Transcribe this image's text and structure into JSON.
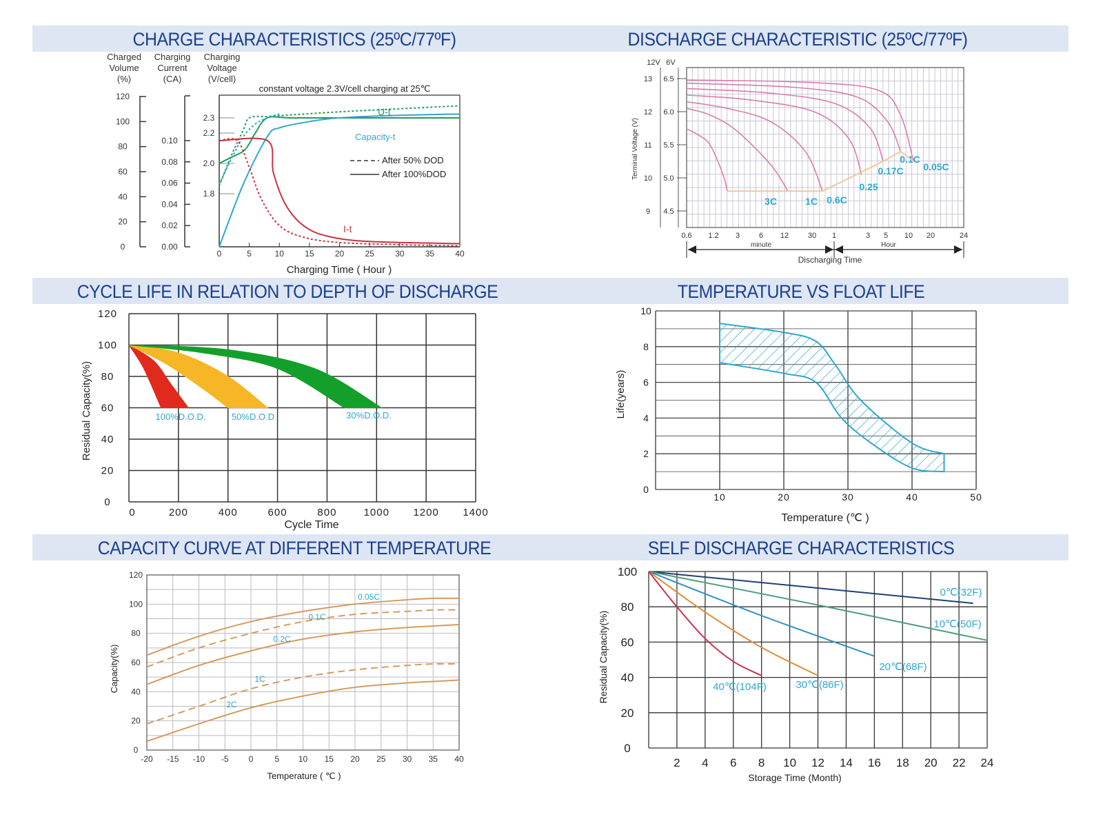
{
  "titles": {
    "charge": "CHARGE CHARACTERISTICS (25ºC/77ºF)",
    "discharge": "DISCHARGE CHARACTERISTIC (25ºC/77ºF)",
    "cycle": "CYCLE LIFE IN RELATION TO DEPTH OF DISCHARGE",
    "float": "TEMPERATURE VS FLOAT LIFE",
    "capacity": "CAPACITY CURVE AT DIFFERENT TEMPERATURE",
    "self": "SELF DISCHARGE CHARACTERISTICS"
  },
  "colors": {
    "band": "#dde6f2",
    "title": "#1b3f8f",
    "cyan": "#2ea7cf",
    "green": "#1f9c5c",
    "red": "#c8323e",
    "pink": "#d77db0",
    "orange": "#d69a5c"
  },
  "chart_data": [
    {
      "id": "charge",
      "type": "line",
      "title": "CHARGE CHARACTERISTICS (25ºC/77ºF)",
      "axis_heads": {
        "volume": [
          "Charged",
          "Volume",
          "(%)"
        ],
        "current": [
          "Charging",
          "Current",
          "(CA)"
        ],
        "voltage": [
          "Charging",
          "Voltage",
          "(V/cell)"
        ]
      },
      "volume_ticks": [
        "120",
        "100",
        "80",
        "60",
        "40",
        "20",
        "0"
      ],
      "current_ticks": [
        "0.10",
        "0.08",
        "0.06",
        "0.04",
        "0.02",
        "0.00"
      ],
      "voltage_ticks": [
        "2.3",
        "2.2",
        "2.0",
        "1.8"
      ],
      "x_ticks": [
        "0",
        "5",
        "10",
        "15",
        "20",
        "25",
        "30",
        "35",
        "40"
      ],
      "xlabel": "Charging Time ( Hour )",
      "note": "constant voltage 2.3V/cell charging at 25℃",
      "xlim": [
        0,
        40
      ],
      "labels": {
        "voltage": "U-t",
        "capacity": "Capacity-t",
        "current": "I-t"
      },
      "legend": [
        {
          "label": "After 50% DOD",
          "style": "dashed"
        },
        {
          "label": "After 100%DOD",
          "style": "solid"
        }
      ],
      "series": [
        {
          "name": "U-t 100%DOD",
          "style": "solid",
          "color": "#1f9c5c",
          "x": [
            0,
            2,
            4,
            5,
            6,
            8,
            12,
            20,
            30,
            40
          ],
          "y": [
            2.0,
            2.04,
            2.08,
            2.13,
            2.2,
            2.3,
            2.3,
            2.3,
            2.3,
            2.3
          ]
        },
        {
          "name": "U-t 50%DOD",
          "style": "dashed",
          "color": "#1f9c5c",
          "x": [
            0,
            2,
            4,
            5,
            8,
            12,
            20,
            30,
            40
          ],
          "y": [
            1.85,
            2.05,
            2.22,
            2.3,
            2.31,
            2.32,
            2.34,
            2.36,
            2.38
          ]
        },
        {
          "name": "Capacity-t 100%DOD",
          "style": "solid",
          "color": "#2ea7cf",
          "x": [
            0,
            4,
            8,
            10,
            15,
            20,
            30,
            40
          ],
          "y": [
            0,
            50,
            88,
            95,
            100,
            103,
            105,
            106
          ]
        },
        {
          "name": "Capacity-t 50%DOD",
          "style": "dashed",
          "color": "#2ea7cf",
          "x": [
            0,
            2,
            4,
            6,
            8,
            10
          ],
          "y": [
            50,
            70,
            88,
            98,
            103,
            106
          ]
        },
        {
          "name": "I-t 100%DOD",
          "style": "solid",
          "color": "#c8323e",
          "x": [
            0,
            8,
            9,
            11,
            14,
            18,
            25,
            40
          ],
          "y": [
            0.1,
            0.1,
            0.07,
            0.04,
            0.02,
            0.01,
            0.005,
            0.003
          ]
        },
        {
          "name": "I-t 50%DOD",
          "style": "dashed",
          "color": "#c8323e",
          "x": [
            0,
            3,
            5,
            7,
            10,
            14,
            20,
            30,
            40
          ],
          "y": [
            0.1,
            0.1,
            0.075,
            0.045,
            0.02,
            0.009,
            0.004,
            0.002,
            0.001
          ]
        }
      ]
    },
    {
      "id": "discharge",
      "type": "line",
      "title": "DISCHARGE CHARACTERISTIC (25ºC/77ºF)",
      "ylabel": "Terminal Voltage (V)",
      "y_head": [
        "12V",
        "6V"
      ],
      "y12_ticks": [
        "13",
        "12",
        "11",
        "10",
        "9"
      ],
      "y6_ticks": [
        "6.5",
        "6.0",
        "5.5",
        "5.0",
        "4.5"
      ],
      "x_ticks": [
        "0.6",
        "1.2",
        "3",
        "6",
        "12",
        "30",
        "1",
        "3",
        "5",
        "10",
        "20",
        "24"
      ],
      "x_unit_minute": "minute",
      "x_unit_hour": "Hour",
      "xlabel": "Discharging Time",
      "ylim": [
        4.2,
        6.7
      ],
      "series": [
        {
          "name": "3C",
          "x": [
            0.6,
            3,
            6,
            9,
            10
          ],
          "y": [
            5.74,
            5.66,
            5.5,
            5.05,
            4.8
          ]
        },
        {
          "name": "1C",
          "x": [
            0.6,
            6,
            12,
            20,
            24
          ],
          "y": [
            6.05,
            5.95,
            5.72,
            5.2,
            4.8
          ]
        },
        {
          "name": "0.6C",
          "x": [
            0.6,
            10,
            20,
            28,
            32
          ],
          "y": [
            6.15,
            6.05,
            5.85,
            5.4,
            4.8
          ]
        },
        {
          "name": "0.25",
          "x": [
            0.6,
            15,
            30,
            38,
            41
          ],
          "y": [
            6.25,
            6.18,
            6.0,
            5.6,
            5.05
          ]
        },
        {
          "name": "0.17C",
          "x": [
            0.6,
            20,
            35,
            43,
            46
          ],
          "y": [
            6.35,
            6.28,
            6.12,
            5.75,
            5.25
          ]
        },
        {
          "name": "0.1C",
          "x": [
            0.6,
            25,
            40,
            47,
            50
          ],
          "y": [
            6.43,
            6.37,
            6.22,
            5.85,
            5.4
          ]
        },
        {
          "name": "0.05C",
          "x": [
            0.6,
            30,
            45,
            50,
            53
          ],
          "y": [
            6.48,
            6.44,
            6.32,
            5.95,
            5.25
          ]
        }
      ],
      "cutoff": {
        "x": [
          10,
          32,
          46,
          50,
          53
        ],
        "y": [
          4.8,
          4.8,
          5.25,
          5.4,
          5.25
        ]
      }
    },
    {
      "id": "cycle",
      "type": "area",
      "title": "CYCLE LIFE IN RELATION TO DEPTH OF DISCHARGE",
      "xlabel": "Cycle Time",
      "ylabel": "Residual Capacity(%)",
      "x_ticks": [
        "0",
        "200",
        "400",
        "600",
        "800",
        "1000",
        "1200",
        "1400"
      ],
      "y_ticks": [
        "0",
        "20",
        "40",
        "60",
        "80",
        "100",
        "120"
      ],
      "xlim": [
        0,
        1400
      ],
      "ylim": [
        0,
        120
      ],
      "series": [
        {
          "name": "100%D.O.D.",
          "color": "#e02a1d",
          "upper": [
            [
              0,
              100
            ],
            [
              100,
              90
            ],
            [
              170,
              75
            ],
            [
              240,
              60
            ]
          ],
          "lower": [
            [
              0,
              100
            ],
            [
              60,
              85
            ],
            [
              130,
              60
            ]
          ]
        },
        {
          "name": "50%D.O.D",
          "color": "#f6b625",
          "upper": [
            [
              0,
              100
            ],
            [
              200,
              95
            ],
            [
              400,
              80
            ],
            [
              560,
              60
            ]
          ],
          "lower": [
            [
              0,
              100
            ],
            [
              150,
              88
            ],
            [
              300,
              72
            ],
            [
              400,
              60
            ]
          ]
        },
        {
          "name": "30%D.O.D.",
          "color": "#13a02a",
          "upper": [
            [
              0,
              100
            ],
            [
              400,
              97
            ],
            [
              750,
              85
            ],
            [
              1020,
              60
            ]
          ],
          "lower": [
            [
              0,
              100
            ],
            [
              300,
              95
            ],
            [
              600,
              85
            ],
            [
              870,
              60
            ]
          ]
        }
      ]
    },
    {
      "id": "float",
      "type": "area",
      "title": "TEMPERATURE VS FLOAT LIFE",
      "xlabel": "Temperature (℃ )",
      "ylabel": "Life(years)",
      "x_ticks": [
        "10",
        "20",
        "30",
        "40",
        "50"
      ],
      "y_ticks": [
        "0",
        "2",
        "4",
        "6",
        "8",
        "10"
      ],
      "xlim": [
        0,
        50
      ],
      "ylim": [
        0,
        10
      ],
      "upper": [
        [
          10,
          9.3
        ],
        [
          20,
          8.8
        ],
        [
          25,
          8.3
        ],
        [
          28,
          7.0
        ],
        [
          32,
          5.0
        ],
        [
          40,
          2.6
        ],
        [
          45,
          2.0
        ]
      ],
      "lower": [
        [
          10,
          7.1
        ],
        [
          20,
          6.5
        ],
        [
          25,
          6.0
        ],
        [
          29,
          4.0
        ],
        [
          34,
          2.5
        ],
        [
          40,
          1.2
        ],
        [
          45,
          1.0
        ]
      ]
    },
    {
      "id": "capacity",
      "type": "line",
      "title": "CAPACITY CURVE AT DIFFERENT TEMPERATURE",
      "xlabel": "Temperature ( ℃ )",
      "ylabel": "Capacity(%)",
      "x_ticks": [
        "-20",
        "-15",
        "-10",
        "-5",
        "0",
        "5",
        "10",
        "15",
        "20",
        "25",
        "30",
        "35",
        "40"
      ],
      "y_ticks": [
        "0",
        "20",
        "40",
        "60",
        "80",
        "100",
        "120"
      ],
      "xlim": [
        -20,
        40
      ],
      "ylim": [
        0,
        120
      ],
      "series": [
        {
          "name": "0.05C",
          "style": "solid",
          "x": [
            -20,
            -10,
            0,
            10,
            20,
            30,
            35,
            40
          ],
          "y": [
            65,
            78,
            88,
            95,
            100,
            103,
            104,
            104
          ]
        },
        {
          "name": "0.1C",
          "style": "dashed",
          "x": [
            -20,
            -10,
            0,
            10,
            20,
            30,
            35,
            40
          ],
          "y": [
            57,
            70,
            80,
            88,
            93,
            95,
            96,
            96
          ]
        },
        {
          "name": "0.2C",
          "style": "solid",
          "x": [
            -20,
            -10,
            0,
            10,
            20,
            30,
            35,
            40
          ],
          "y": [
            45,
            58,
            68,
            76,
            81,
            84,
            85,
            86
          ]
        },
        {
          "name": "1C",
          "style": "dashed",
          "x": [
            -20,
            -10,
            0,
            10,
            20,
            30,
            35,
            40
          ],
          "y": [
            18,
            30,
            42,
            50,
            55,
            58,
            59,
            59
          ]
        },
        {
          "name": "2C",
          "style": "solid",
          "x": [
            -20,
            -10,
            0,
            10,
            20,
            30,
            35,
            40
          ],
          "y": [
            6,
            18,
            29,
            37,
            43,
            46,
            47,
            48
          ]
        }
      ]
    },
    {
      "id": "self",
      "type": "line",
      "title": "SELF DISCHARGE CHARACTERISTICS",
      "xlabel": "Storage Time (Month)",
      "ylabel": "Residual Capacity(%)",
      "x_ticks": [
        "2",
        "4",
        "6",
        "8",
        "10",
        "12",
        "14",
        "16",
        "18",
        "20",
        "22",
        "24"
      ],
      "y_ticks": [
        "0",
        "20",
        "40",
        "60",
        "80",
        "100"
      ],
      "xlim": [
        0,
        24
      ],
      "ylim": [
        0,
        100
      ],
      "series": [
        {
          "name": "0℃(32F)",
          "color": "#1f3f73",
          "x": [
            0,
            23
          ],
          "y": [
            100,
            82
          ]
        },
        {
          "name": "10℃(50F)",
          "color": "#4c9e7b",
          "x": [
            0,
            12,
            24
          ],
          "y": [
            100,
            81,
            61
          ]
        },
        {
          "name": "20℃(68F)",
          "color": "#2b8fc6",
          "x": [
            0,
            8,
            16
          ],
          "y": [
            100,
            75,
            52
          ]
        },
        {
          "name": "30℃(86F)",
          "color": "#e08a3a",
          "x": [
            0,
            4,
            8,
            12
          ],
          "y": [
            100,
            77,
            57,
            41
          ]
        },
        {
          "name": "40℃(104F)",
          "color": "#c8324c",
          "x": [
            0,
            2,
            4,
            6,
            8
          ],
          "y": [
            100,
            80,
            62,
            49,
            41
          ]
        }
      ]
    }
  ]
}
